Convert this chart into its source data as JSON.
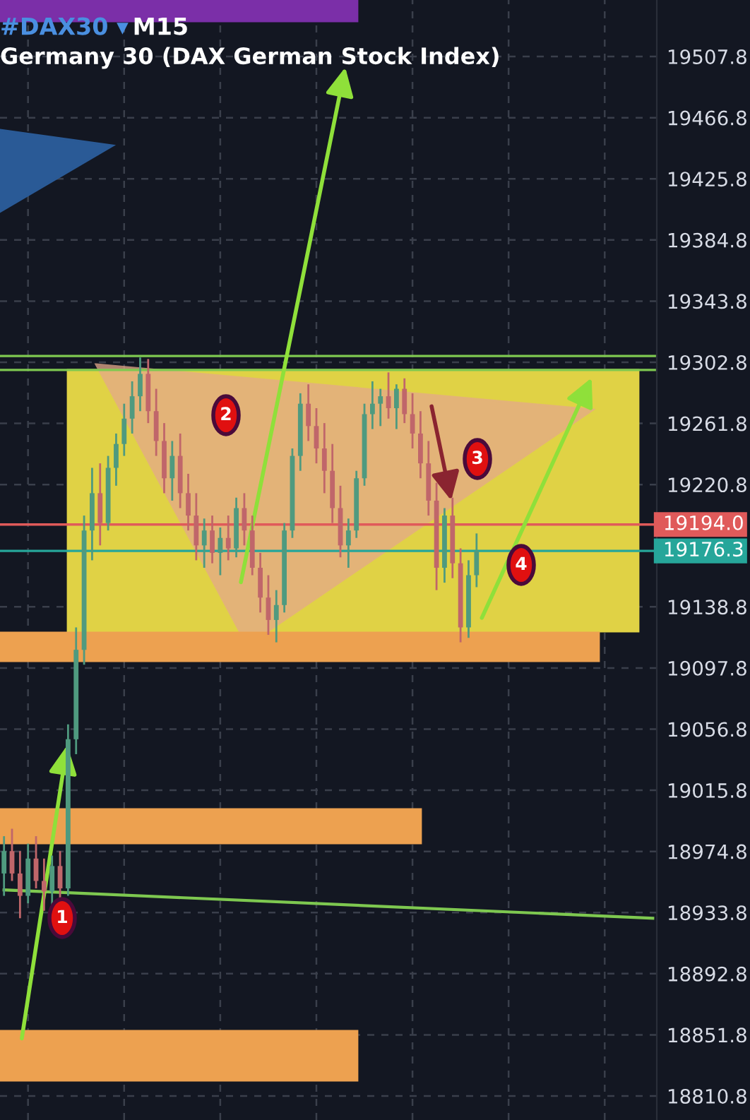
{
  "chart_data": {
    "type": "candlestick",
    "title": "#DAX30 ▾",
    "subtitle": "Germany 30 (DAX German Stock Index)",
    "annotations": [
      "M15",
      "1",
      "2",
      "3",
      "4"
    ],
    "categories": [
      null,
      null,
      null,
      null,
      null,
      null,
      null,
      null,
      null,
      null,
      null,
      null,
      null,
      null,
      null,
      null,
      null,
      null,
      null,
      null,
      null,
      null,
      null,
      null,
      null,
      null,
      null,
      null,
      null,
      null,
      null,
      null,
      null,
      null,
      null,
      null,
      null,
      null,
      null,
      null,
      null,
      null,
      null,
      null,
      null,
      null,
      null,
      null,
      null,
      null,
      null,
      null,
      null,
      null,
      null,
      null,
      null,
      null,
      null,
      null,
      null,
      null,
      null,
      null,
      null,
      null,
      null,
      null,
      null,
      null,
      null,
      null,
      null,
      null,
      null,
      null,
      null,
      null,
      null,
      null,
      null,
      null
    ],
    "ohlc": [
      [
        18960,
        18985,
        18945,
        18975
      ],
      [
        18975,
        18990,
        18955,
        18960
      ],
      [
        18960,
        18975,
        18930,
        18945
      ],
      [
        18945,
        18980,
        18940,
        18970
      ],
      [
        18970,
        18985,
        18950,
        18955
      ],
      [
        18955,
        18970,
        18935,
        18948
      ],
      [
        18948,
        18972,
        18938,
        18965
      ],
      [
        18965,
        18975,
        18942,
        18950
      ],
      [
        18950,
        19060,
        18945,
        19050
      ],
      [
        19050,
        19125,
        19040,
        19110
      ],
      [
        19110,
        19200,
        19100,
        19190
      ],
      [
        19190,
        19232,
        19170,
        19215
      ],
      [
        19215,
        19235,
        19180,
        19195
      ],
      [
        19195,
        19240,
        19190,
        19232
      ],
      [
        19232,
        19255,
        19220,
        19248
      ],
      [
        19248,
        19275,
        19240,
        19265
      ],
      [
        19265,
        19290,
        19255,
        19280
      ],
      [
        19280,
        19306,
        19270,
        19295
      ],
      [
        19295,
        19305,
        19262,
        19270
      ],
      [
        19270,
        19285,
        19240,
        19250
      ],
      [
        19250,
        19262,
        19215,
        19225
      ],
      [
        19225,
        19250,
        19210,
        19240
      ],
      [
        19240,
        19255,
        19205,
        19215
      ],
      [
        19215,
        19228,
        19190,
        19200
      ],
      [
        19200,
        19215,
        19170,
        19180
      ],
      [
        19180,
        19198,
        19165,
        19190
      ],
      [
        19190,
        19200,
        19168,
        19175
      ],
      [
        19175,
        19192,
        19160,
        19185
      ],
      [
        19185,
        19200,
        19170,
        19178
      ],
      [
        19178,
        19212,
        19172,
        19205
      ],
      [
        19205,
        19215,
        19180,
        19190
      ],
      [
        19190,
        19200,
        19160,
        19165
      ],
      [
        19165,
        19175,
        19135,
        19145
      ],
      [
        19145,
        19160,
        19120,
        19130
      ],
      [
        19130,
        19150,
        19115,
        19140
      ],
      [
        19140,
        19195,
        19135,
        19190
      ],
      [
        19190,
        19245,
        19185,
        19240
      ],
      [
        19240,
        19282,
        19230,
        19275
      ],
      [
        19275,
        19288,
        19250,
        19260
      ],
      [
        19260,
        19272,
        19235,
        19245
      ],
      [
        19245,
        19262,
        19215,
        19230
      ],
      [
        19230,
        19248,
        19195,
        19205
      ],
      [
        19205,
        19220,
        19172,
        19180
      ],
      [
        19180,
        19198,
        19165,
        19190
      ],
      [
        19190,
        19230,
        19185,
        19225
      ],
      [
        19225,
        19275,
        19220,
        19268
      ],
      [
        19268,
        19290,
        19258,
        19275
      ],
      [
        19275,
        19285,
        19260,
        19280
      ],
      [
        19280,
        19296,
        19265,
        19272
      ],
      [
        19272,
        19288,
        19258,
        19285
      ],
      [
        19285,
        19292,
        19262,
        19268
      ],
      [
        19268,
        19282,
        19245,
        19255
      ],
      [
        19255,
        19270,
        19225,
        19235
      ],
      [
        19235,
        19250,
        19200,
        19210
      ],
      [
        19210,
        19222,
        19150,
        19165
      ],
      [
        19165,
        19205,
        19155,
        19200
      ],
      [
        19200,
        19212,
        19158,
        19168
      ],
      [
        19168,
        19178,
        19115,
        19125
      ],
      [
        19125,
        19170,
        19118,
        19160
      ],
      [
        19160,
        19188,
        19152,
        19176.3
      ],
      null,
      null,
      null,
      null,
      null,
      null,
      null,
      null,
      null,
      null,
      null,
      null,
      null,
      null,
      null,
      null,
      null,
      null,
      null,
      null,
      null,
      null
    ],
    "series": [
      {
        "type": "line",
        "color": "#7ec850",
        "values": [
          18949,
          null,
          null,
          null,
          null,
          null,
          null,
          null,
          null,
          null,
          null,
          null,
          null,
          null,
          null,
          null,
          null,
          null,
          null,
          null,
          null,
          null,
          null,
          null,
          null,
          null,
          null,
          null,
          null,
          null,
          null,
          null,
          null,
          null,
          null,
          null,
          null,
          null,
          null,
          null,
          null,
          null,
          null,
          null,
          null,
          null,
          null,
          null,
          null,
          null,
          null,
          null,
          null,
          null,
          null,
          null,
          null,
          null,
          null,
          null,
          null,
          null,
          null,
          null,
          null,
          null,
          null,
          null,
          null,
          null,
          null,
          null,
          null,
          null,
          null,
          null,
          null,
          null,
          null,
          null,
          null,
          18930
        ]
      }
    ],
    "colors": [
      "#4f9a7f",
      "#c0666a",
      "#c0666a",
      "#4f9a7f",
      "#c0666a",
      "#c0666a",
      "#4f9a7f",
      "#c0666a",
      "#4f9a7f",
      "#4f9a7f",
      "#4f9a7f",
      "#4f9a7f",
      "#c0666a",
      "#4f9a7f",
      "#4f9a7f",
      "#4f9a7f",
      "#4f9a7f",
      "#4f9a7f",
      "#c0666a",
      "#c0666a",
      "#c0666a",
      "#4f9a7f",
      "#c0666a",
      "#c0666a",
      "#c0666a",
      "#4f9a7f",
      "#c0666a",
      "#4f9a7f",
      "#c0666a",
      "#4f9a7f",
      "#c0666a",
      "#c0666a",
      "#c0666a",
      "#c0666a",
      "#4f9a7f",
      "#4f9a7f",
      "#4f9a7f",
      "#4f9a7f",
      "#c0666a",
      "#c0666a",
      "#c0666a",
      "#c0666a",
      "#c0666a",
      "#4f9a7f",
      "#4f9a7f",
      "#4f9a7f",
      "#4f9a7f",
      "#4f9a7f",
      "#c0666a",
      "#4f9a7f",
      "#c0666a",
      "#c0666a",
      "#c0666a",
      "#c0666a",
      "#c0666a",
      "#4f9a7f",
      "#c0666a",
      "#c0666a",
      "#4f9a7f",
      "#4f9a7f",
      null,
      null,
      null,
      null,
      null,
      null,
      null,
      null,
      null,
      null,
      null,
      null,
      null,
      null,
      null,
      null,
      null,
      null,
      null,
      null,
      null,
      null
    ],
    "ylim": [
      18794.7,
      19545.7
    ],
    "yticks": [
      19507.8,
      19466.8,
      19425.8,
      19384.8,
      19343.8,
      19302.8,
      19261.8,
      19220.8,
      19138.8,
      19097.8,
      19056.8,
      19015.8,
      18974.8,
      18933.8,
      18892.8,
      18851.8,
      18810.8
    ],
    "ref_lines": [
      {
        "axis": "y",
        "value": 19194.0,
        "label": "19194.0",
        "color": "#e05a5a"
      },
      {
        "axis": "y",
        "value": 19176.3,
        "label": "19176.3",
        "color": "#26a69a"
      },
      {
        "axis": "y",
        "value": 19307.0,
        "color": "#7ec850"
      },
      {
        "axis": "y",
        "value": 19297.6,
        "color": "#7ec850"
      }
    ],
    "grid": true
  }
}
